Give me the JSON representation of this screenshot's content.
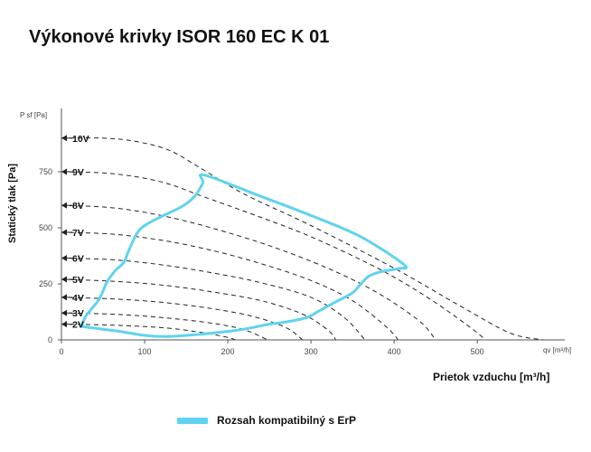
{
  "title": "Výkonové krivky ISOR 160 EC K 01",
  "chart_data": {
    "type": "line",
    "title": "Výkonové krivky ISOR 160 EC K 01",
    "xlabel": "Prietok vzduchu [m³/h]",
    "x_unit_label": "qv [m³/h]",
    "ylabel": "Statický tlak [Pa]",
    "y_unit_label": "P sf [Pa]",
    "xlim": [
      0,
      590
    ],
    "ylim": [
      0,
      1000
    ],
    "x_ticks": [
      "0",
      "100",
      "200",
      "300",
      "400",
      "500"
    ],
    "y_ticks": [
      "0",
      "250",
      "500",
      "750"
    ],
    "grid": false,
    "legend_position": "bottom",
    "series": [
      {
        "label": "10V",
        "points": [
          [
            0,
            900
          ],
          [
            50,
            900
          ],
          [
            90,
            885
          ],
          [
            130,
            845
          ],
          [
            170,
            760
          ],
          [
            220,
            650
          ],
          [
            300,
            510
          ],
          [
            400,
            320
          ],
          [
            480,
            150
          ],
          [
            540,
            30
          ],
          [
            580,
            0
          ]
        ]
      },
      {
        "label": "9V",
        "points": [
          [
            0,
            750
          ],
          [
            60,
            742
          ],
          [
            120,
            705
          ],
          [
            170,
            640
          ],
          [
            230,
            560
          ],
          [
            300,
            460
          ],
          [
            380,
            320
          ],
          [
            440,
            190
          ],
          [
            490,
            60
          ],
          [
            510,
            0
          ]
        ]
      },
      {
        "label": "8V",
        "points": [
          [
            0,
            600
          ],
          [
            60,
            590
          ],
          [
            120,
            555
          ],
          [
            180,
            500
          ],
          [
            250,
            420
          ],
          [
            320,
            320
          ],
          [
            380,
            210
          ],
          [
            430,
            85
          ],
          [
            450,
            0
          ]
        ]
      },
      {
        "label": "7V",
        "points": [
          [
            0,
            480
          ],
          [
            60,
            472
          ],
          [
            120,
            445
          ],
          [
            180,
            400
          ],
          [
            240,
            340
          ],
          [
            300,
            265
          ],
          [
            350,
            175
          ],
          [
            390,
            60
          ],
          [
            405,
            0
          ]
        ]
      },
      {
        "label": "6V",
        "points": [
          [
            0,
            365
          ],
          [
            60,
            358
          ],
          [
            120,
            335
          ],
          [
            180,
            300
          ],
          [
            240,
            255
          ],
          [
            300,
            190
          ],
          [
            340,
            100
          ],
          [
            365,
            0
          ]
        ]
      },
      {
        "label": "5V",
        "points": [
          [
            0,
            270
          ],
          [
            60,
            262
          ],
          [
            120,
            245
          ],
          [
            180,
            215
          ],
          [
            240,
            175
          ],
          [
            290,
            115
          ],
          [
            320,
            45
          ],
          [
            330,
            0
          ]
        ]
      },
      {
        "label": "4V",
        "points": [
          [
            0,
            190
          ],
          [
            60,
            183
          ],
          [
            120,
            168
          ],
          [
            180,
            140
          ],
          [
            230,
            105
          ],
          [
            270,
            55
          ],
          [
            290,
            0
          ]
        ]
      },
      {
        "label": "3V",
        "points": [
          [
            0,
            120
          ],
          [
            60,
            115
          ],
          [
            120,
            100
          ],
          [
            180,
            75
          ],
          [
            220,
            45
          ],
          [
            248,
            0
          ]
        ]
      },
      {
        "label": "2V",
        "points": [
          [
            0,
            70
          ],
          [
            60,
            66
          ],
          [
            120,
            55
          ],
          [
            160,
            38
          ],
          [
            195,
            15
          ],
          [
            210,
            0
          ]
        ]
      }
    ],
    "erp_region": {
      "name": "Rozsah kompatibilný s ErP",
      "color": "#5fd3ef",
      "points": [
        [
          25,
          70
        ],
        [
          30,
          110
        ],
        [
          45,
          180
        ],
        [
          55,
          260
        ],
        [
          65,
          310
        ],
        [
          75,
          345
        ],
        [
          80,
          390
        ],
        [
          90,
          470
        ],
        [
          100,
          510
        ],
        [
          120,
          550
        ],
        [
          145,
          595
        ],
        [
          160,
          640
        ],
        [
          170,
          700
        ],
        [
          172,
          735
        ],
        [
          240,
          640
        ],
        [
          300,
          555
        ],
        [
          360,
          460
        ],
        [
          412,
          335
        ],
        [
          405,
          318
        ],
        [
          385,
          305
        ],
        [
          370,
          285
        ],
        [
          360,
          250
        ],
        [
          350,
          210
        ],
        [
          330,
          170
        ],
        [
          310,
          130
        ],
        [
          295,
          100
        ],
        [
          270,
          80
        ],
        [
          250,
          70
        ],
        [
          215,
          45
        ],
        [
          180,
          30
        ],
        [
          150,
          20
        ],
        [
          125,
          15
        ],
        [
          100,
          20
        ],
        [
          70,
          38
        ],
        [
          45,
          50
        ],
        [
          25,
          60
        ]
      ]
    }
  },
  "legend": {
    "label": "Rozsah kompatibilný s ErP"
  }
}
